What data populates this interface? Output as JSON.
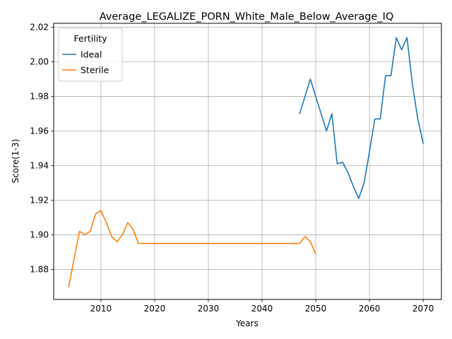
{
  "chart_data": {
    "type": "line",
    "title": "Average_LEGALIZE_PORN_White_Male_Below_Average_IQ",
    "xlabel": "Years",
    "ylabel": "Score(1-3)",
    "xlim": [
      2001.2,
      2073.4
    ],
    "ylim": [
      1.8626,
      2.0223
    ],
    "xticks": [
      2010,
      2020,
      2030,
      2040,
      2050,
      2060,
      2070
    ],
    "xtick_labels": [
      "2010",
      "2020",
      "2030",
      "2040",
      "2050",
      "2060",
      "2070"
    ],
    "yticks": [
      1.88,
      1.9,
      1.92,
      1.94,
      1.96,
      1.98,
      2.0,
      2.02
    ],
    "ytick_labels": [
      "1.88",
      "1.90",
      "1.92",
      "1.94",
      "1.96",
      "1.98",
      "2.00",
      "2.02"
    ],
    "grid": true,
    "legend": {
      "title": "Fertility",
      "position": "top-left"
    },
    "series": [
      {
        "name": "Ideal",
        "color": "#1f77b4",
        "x": [
          2047,
          2048,
          2049,
          2050,
          2051,
          2052,
          2053,
          2054,
          2055,
          2056,
          2057,
          2058,
          2059,
          2060,
          2061,
          2062,
          2063,
          2064,
          2065,
          2066,
          2067,
          2068,
          2069,
          2070
        ],
        "y": [
          1.97,
          1.98,
          1.99,
          1.98,
          1.97,
          1.96,
          1.97,
          1.941,
          1.942,
          1.936,
          1.928,
          1.921,
          1.93,
          1.948,
          1.967,
          1.967,
          1.992,
          1.992,
          2.014,
          2.007,
          2.014,
          1.987,
          1.967,
          1.953
        ]
      },
      {
        "name": "Sterile",
        "color": "#ff7f0e",
        "x": [
          2004,
          2005,
          2006,
          2007,
          2008,
          2009,
          2010,
          2011,
          2012,
          2013,
          2014,
          2015,
          2016,
          2017,
          2018,
          2019,
          2020,
          2021,
          2022,
          2023,
          2024,
          2025,
          2026,
          2027,
          2028,
          2029,
          2030,
          2031,
          2032,
          2033,
          2034,
          2035,
          2036,
          2037,
          2038,
          2039,
          2040,
          2041,
          2042,
          2043,
          2044,
          2045,
          2046,
          2047,
          2048,
          2049,
          2050
        ],
        "y": [
          1.87,
          1.886,
          1.902,
          1.9,
          1.902,
          1.912,
          1.914,
          1.907,
          1.899,
          1.896,
          1.9,
          1.907,
          1.903,
          1.895,
          1.895,
          1.895,
          1.895,
          1.895,
          1.895,
          1.895,
          1.895,
          1.895,
          1.895,
          1.895,
          1.895,
          1.895,
          1.895,
          1.895,
          1.895,
          1.895,
          1.895,
          1.895,
          1.895,
          1.895,
          1.895,
          1.895,
          1.895,
          1.895,
          1.895,
          1.895,
          1.895,
          1.895,
          1.895,
          1.895,
          1.899,
          1.896,
          1.889
        ]
      }
    ]
  }
}
